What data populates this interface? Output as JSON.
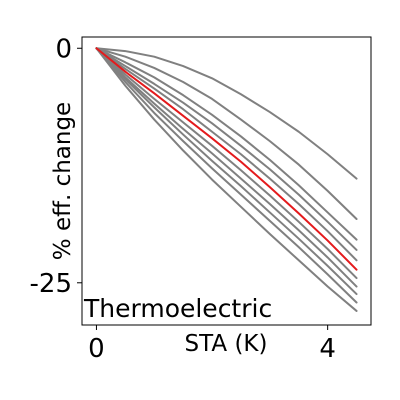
{
  "chart_data": {
    "type": "line",
    "title": "",
    "annotation": "Thermoelectric",
    "xlabel": "STA (K)",
    "ylabel": "% eff. change",
    "xlim": [
      -0.25,
      4.75
    ],
    "ylim": [
      -29.5,
      1.2
    ],
    "xticks": [
      0,
      4
    ],
    "xtick_labels": [
      "0",
      "4"
    ],
    "yticks": [
      0,
      -25
    ],
    "ytick_labels": [
      "0",
      "-25"
    ],
    "grid": false,
    "legend": "none",
    "colors": {
      "series_default": "#808080",
      "highlight": "#e41a1c",
      "axes": "#000000",
      "background": "#ffffff"
    },
    "x": [
      0,
      0.5,
      1,
      1.5,
      2,
      2.5,
      3,
      3.5,
      4,
      4.5
    ],
    "series": [
      {
        "values": [
          0,
          -0.3,
          -0.9,
          -1.9,
          -3.2,
          -4.9,
          -6.8,
          -8.9,
          -11.3,
          -13.9
        ],
        "color": "#808080"
      },
      {
        "values": [
          0,
          -0.9,
          -2.1,
          -3.6,
          -5.4,
          -7.6,
          -9.9,
          -12.4,
          -15.2,
          -18.2
        ],
        "color": "#808080"
      },
      {
        "values": [
          0,
          -1.5,
          -3.1,
          -5.0,
          -7.1,
          -9.4,
          -11.9,
          -14.6,
          -17.5,
          -20.4
        ],
        "color": "#808080"
      },
      {
        "values": [
          0,
          -1.9,
          -3.8,
          -5.8,
          -8.0,
          -10.4,
          -12.9,
          -15.6,
          -18.5,
          -21.5
        ],
        "color": "#808080"
      },
      {
        "values": [
          0,
          -2.2,
          -4.3,
          -6.5,
          -8.9,
          -11.3,
          -13.9,
          -16.6,
          -19.5,
          -22.6
        ],
        "color": "#808080"
      },
      {
        "values": [
          0,
          -2.5,
          -4.8,
          -7.2,
          -9.6,
          -12.1,
          -14.8,
          -17.6,
          -20.5,
          -23.6
        ],
        "color": "#e41a1c",
        "highlight": true
      },
      {
        "values": [
          0,
          -2.8,
          -5.4,
          -7.9,
          -10.4,
          -13.0,
          -15.7,
          -18.5,
          -21.4,
          -24.5
        ],
        "color": "#808080"
      },
      {
        "values": [
          0,
          -3.1,
          -5.9,
          -8.6,
          -11.2,
          -13.9,
          -16.6,
          -19.4,
          -22.3,
          -25.4
        ],
        "color": "#808080"
      },
      {
        "values": [
          0,
          -3.3,
          -6.3,
          -9.2,
          -12.0,
          -14.7,
          -17.5,
          -20.3,
          -23.2,
          -26.2
        ],
        "color": "#808080"
      },
      {
        "values": [
          0,
          -3.6,
          -6.9,
          -9.9,
          -12.8,
          -15.6,
          -18.4,
          -21.2,
          -24.1,
          -27.1
        ],
        "color": "#808080"
      },
      {
        "values": [
          0,
          -4.0,
          -7.6,
          -10.9,
          -14.0,
          -16.9,
          -19.8,
          -22.6,
          -25.4,
          -28.0
        ],
        "color": "#808080"
      }
    ]
  }
}
